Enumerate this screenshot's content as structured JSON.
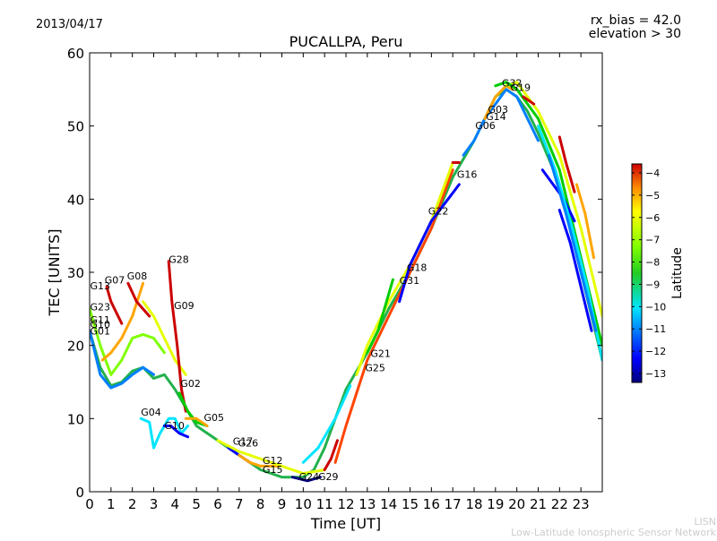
{
  "header": {
    "date": "2013/04/17",
    "title": "PUCALLPA, Peru",
    "rx_bias": "rx_bias = 42.0",
    "elevation": "elevation > 30"
  },
  "footer": {
    "brand": "LISN",
    "network": "Low-Latitude Ionospheric Sensor Network"
  },
  "colorbar": {
    "label": "Latitude",
    "ticks": [
      "-4",
      "-5",
      "-6",
      "-7",
      "-8",
      "-9",
      "-10",
      "-11",
      "-12",
      "-13"
    ],
    "range": [
      -13.4,
      -3.6
    ],
    "colors": [
      "#00007f",
      "#0000ff",
      "#007fff",
      "#00e5ff",
      "#22b14c",
      "#00cc00",
      "#7fff00",
      "#e5ff00",
      "#ffa500",
      "#ff4500",
      "#cc0000"
    ]
  },
  "chart_data": {
    "type": "scatter",
    "title": "PUCALLPA, Peru",
    "xlabel": "Time [UT]",
    "ylabel": "TEC [UNITS]",
    "xlim": [
      0,
      24
    ],
    "ylim": [
      0,
      60
    ],
    "xticks": [
      "0",
      "1",
      "2",
      "3",
      "4",
      "5",
      "6",
      "7",
      "8",
      "9",
      "10",
      "11",
      "12",
      "13",
      "14",
      "15",
      "16",
      "17",
      "18",
      "19",
      "20",
      "21",
      "22",
      "23"
    ],
    "yticks": [
      "0",
      "10",
      "20",
      "30",
      "40",
      "50",
      "60"
    ],
    "grid": false,
    "series": [
      {
        "color": "#22b14c",
        "points": [
          [
            0,
            22
          ],
          [
            0.5,
            17
          ],
          [
            1,
            14.5
          ],
          [
            1.5,
            15
          ],
          [
            2,
            16.5
          ],
          [
            2.5,
            17
          ],
          [
            3,
            15.5
          ],
          [
            3.5,
            16
          ],
          [
            4,
            14
          ],
          [
            5,
            9
          ],
          [
            6,
            7
          ],
          [
            7,
            5
          ],
          [
            8,
            3
          ],
          [
            9,
            2
          ],
          [
            10,
            2
          ],
          [
            10.5,
            3
          ],
          [
            11,
            6
          ],
          [
            11.5,
            10
          ],
          [
            12,
            14
          ],
          [
            13,
            19
          ],
          [
            14,
            25
          ],
          [
            15,
            30
          ],
          [
            16,
            36
          ],
          [
            17,
            43
          ],
          [
            18,
            48
          ],
          [
            19,
            54
          ],
          [
            19.5,
            55
          ],
          [
            20,
            54
          ],
          [
            20.5,
            52
          ],
          [
            21,
            49
          ],
          [
            22,
            42
          ],
          [
            23,
            30
          ],
          [
            24,
            18
          ]
        ]
      },
      {
        "color": "#007fff",
        "points": [
          [
            0,
            22
          ],
          [
            0.5,
            16
          ],
          [
            1,
            14.2
          ],
          [
            1.5,
            14.8
          ],
          [
            2,
            16
          ],
          [
            2.5,
            17
          ],
          [
            3,
            16
          ]
        ]
      },
      {
        "color": "#7fff00",
        "points": [
          [
            0,
            25
          ],
          [
            0.5,
            20
          ],
          [
            1,
            16
          ],
          [
            1.5,
            18
          ],
          [
            2,
            21
          ],
          [
            2.5,
            21.5
          ],
          [
            3,
            21
          ],
          [
            3.5,
            19
          ]
        ]
      },
      {
        "color": "#ffa500",
        "points": [
          [
            0.6,
            18
          ],
          [
            1,
            19
          ],
          [
            1.5,
            21
          ],
          [
            2,
            24
          ],
          [
            2.5,
            28.5
          ]
        ]
      },
      {
        "color": "#cc0000",
        "points": [
          [
            0.8,
            28
          ],
          [
            1,
            26
          ],
          [
            1.5,
            23
          ]
        ]
      },
      {
        "color": "#cc0000",
        "points": [
          [
            1.8,
            28.5
          ],
          [
            2.2,
            26
          ],
          [
            2.8,
            24
          ]
        ]
      },
      {
        "color": "#e5ff00",
        "points": [
          [
            2.5,
            26
          ],
          [
            3,
            24
          ],
          [
            3.5,
            21
          ],
          [
            4,
            18
          ],
          [
            4.5,
            16
          ]
        ]
      },
      {
        "color": "#cc0000",
        "points": [
          [
            3.7,
            31.5
          ],
          [
            3.85,
            26
          ],
          [
            4.1,
            20
          ],
          [
            4.3,
            14
          ],
          [
            4.5,
            11
          ]
        ]
      },
      {
        "color": "#00cc00",
        "points": [
          [
            4.2,
            13.5
          ],
          [
            4.6,
            11
          ],
          [
            5,
            9.5
          ],
          [
            5.5,
            9
          ]
        ]
      },
      {
        "color": "#00e5ff",
        "points": [
          [
            2.4,
            10
          ],
          [
            2.8,
            9.5
          ],
          [
            3,
            6
          ],
          [
            3.3,
            8
          ],
          [
            3.7,
            10
          ],
          [
            4,
            10
          ],
          [
            4.3,
            8
          ],
          [
            4.6,
            9
          ]
        ]
      },
      {
        "color": "#0000ff",
        "points": [
          [
            3.5,
            9
          ],
          [
            3.8,
            9
          ],
          [
            4.2,
            8
          ],
          [
            4.6,
            7.5
          ]
        ]
      },
      {
        "color": "#ffa500",
        "points": [
          [
            4.5,
            10
          ],
          [
            5,
            10
          ],
          [
            5.5,
            9
          ]
        ]
      },
      {
        "color": "#0000ff",
        "points": [
          [
            6.5,
            6
          ],
          [
            7,
            5
          ],
          [
            7.5,
            4
          ]
        ]
      },
      {
        "color": "#ffa500",
        "points": [
          [
            7,
            5
          ],
          [
            7.5,
            4
          ],
          [
            8,
            3.5
          ],
          [
            8.5,
            3.5
          ],
          [
            9,
            3.5
          ]
        ]
      },
      {
        "color": "#e5ff00",
        "points": [
          [
            6,
            7
          ],
          [
            7,
            5.5
          ],
          [
            8,
            4.5
          ],
          [
            9,
            3.5
          ],
          [
            10,
            2.5
          ],
          [
            11,
            3
          ]
        ]
      },
      {
        "color": "#00007f",
        "points": [
          [
            9.5,
            2
          ],
          [
            10.2,
            1.5
          ],
          [
            10.8,
            2
          ]
        ]
      },
      {
        "color": "#cc0000",
        "points": [
          [
            11,
            3
          ],
          [
            11.3,
            4.5
          ],
          [
            11.6,
            7
          ]
        ]
      },
      {
        "color": "#00e5ff",
        "points": [
          [
            10,
            4
          ],
          [
            10.7,
            6
          ],
          [
            11.5,
            10
          ],
          [
            12.2,
            14.5
          ]
        ]
      },
      {
        "color": "#ff4500",
        "points": [
          [
            11.5,
            4
          ],
          [
            12,
            9
          ],
          [
            13,
            18
          ],
          [
            14,
            24
          ],
          [
            15,
            30
          ],
          [
            16,
            36
          ],
          [
            17,
            44
          ]
        ]
      },
      {
        "color": "#e5ff00",
        "points": [
          [
            12.5,
            16
          ],
          [
            13,
            20
          ],
          [
            14,
            26
          ],
          [
            15,
            31
          ],
          [
            16,
            37
          ],
          [
            17,
            45
          ]
        ]
      },
      {
        "color": "#00cc00",
        "points": [
          [
            13,
            19
          ],
          [
            13.5,
            22
          ],
          [
            14.2,
            29
          ]
        ]
      },
      {
        "color": "#0000ff",
        "points": [
          [
            14.5,
            26
          ],
          [
            15,
            31
          ],
          [
            16,
            37
          ],
          [
            17.3,
            42
          ]
        ]
      },
      {
        "color": "#cc0000",
        "points": [
          [
            17,
            45
          ],
          [
            17.3,
            45
          ]
        ]
      },
      {
        "color": "#007fff",
        "points": [
          [
            17.5,
            46
          ],
          [
            18,
            48
          ],
          [
            18.5,
            51
          ],
          [
            19,
            53
          ],
          [
            19.5,
            55
          ],
          [
            20,
            54
          ],
          [
            20.5,
            51
          ],
          [
            21,
            48
          ]
        ]
      },
      {
        "color": "#ffa500",
        "points": [
          [
            18.5,
            51
          ],
          [
            19,
            54
          ],
          [
            19.5,
            55.5
          ],
          [
            19.8,
            55
          ]
        ]
      },
      {
        "color": "#e5ff00",
        "points": [
          [
            19.5,
            55.5
          ],
          [
            20,
            56
          ],
          [
            20.5,
            54
          ],
          [
            21,
            52
          ],
          [
            22,
            46
          ],
          [
            23,
            36
          ],
          [
            24,
            24
          ]
        ]
      },
      {
        "color": "#00cc00",
        "points": [
          [
            19,
            55.5
          ],
          [
            19.5,
            56
          ],
          [
            20,
            55
          ],
          [
            21,
            51
          ],
          [
            22,
            44
          ],
          [
            23,
            32
          ],
          [
            24,
            20
          ]
        ]
      },
      {
        "color": "#cc0000",
        "points": [
          [
            20.3,
            54
          ],
          [
            20.8,
            53
          ]
        ]
      },
      {
        "color": "#cc0000",
        "points": [
          [
            22,
            48.5
          ],
          [
            22.3,
            45
          ],
          [
            22.7,
            41
          ]
        ]
      },
      {
        "color": "#0000ff",
        "points": [
          [
            21.2,
            44
          ],
          [
            21.7,
            42
          ],
          [
            22.2,
            40
          ],
          [
            22.7,
            37
          ]
        ]
      },
      {
        "color": "#0000ff",
        "points": [
          [
            22,
            38.5
          ],
          [
            22.5,
            34
          ],
          [
            23,
            28
          ],
          [
            23.5,
            22
          ]
        ]
      },
      {
        "color": "#ffa500",
        "points": [
          [
            22.8,
            42
          ],
          [
            23.2,
            38
          ],
          [
            23.6,
            32
          ]
        ]
      },
      {
        "color": "#00e5ff",
        "points": [
          [
            21,
            50
          ],
          [
            21.8,
            44
          ],
          [
            22.6,
            36
          ],
          [
            23.3,
            28
          ],
          [
            24,
            18
          ]
        ]
      },
      {
        "color": "#007fff",
        "points": [
          [
            21.5,
            46
          ],
          [
            22.3,
            38
          ],
          [
            23,
            30
          ],
          [
            23.7,
            22
          ]
        ]
      }
    ],
    "annotations": [
      {
        "text": "G13",
        "x": 0.02,
        "y": 27.7
      },
      {
        "text": "G07",
        "x": 0.7,
        "y": 28.5
      },
      {
        "text": "G08",
        "x": 1.75,
        "y": 29
      },
      {
        "text": "G28",
        "x": 3.7,
        "y": 31.3
      },
      {
        "text": "G09",
        "x": 3.95,
        "y": 25
      },
      {
        "text": "G23",
        "x": 0.02,
        "y": 24.8
      },
      {
        "text": "G11",
        "x": 0.02,
        "y": 23
      },
      {
        "text": "G10",
        "x": 0.02,
        "y": 22.4
      },
      {
        "text": "G01",
        "x": 0.02,
        "y": 21.5
      },
      {
        "text": "G02",
        "x": 4.25,
        "y": 14.3
      },
      {
        "text": "G04",
        "x": 2.4,
        "y": 10.4
      },
      {
        "text": "G10",
        "x": 3.5,
        "y": 8.6
      },
      {
        "text": "G05",
        "x": 5.35,
        "y": 9.7
      },
      {
        "text": "G17",
        "x": 6.7,
        "y": 6.4
      },
      {
        "text": "G26",
        "x": 6.95,
        "y": 6.2
      },
      {
        "text": "G12",
        "x": 8.1,
        "y": 3.8
      },
      {
        "text": "G15",
        "x": 8.1,
        "y": 2.6
      },
      {
        "text": "G24",
        "x": 9.8,
        "y": 1.6
      },
      {
        "text": "G29",
        "x": 10.7,
        "y": 1.6
      },
      {
        "text": "G25",
        "x": 12.9,
        "y": 16.5
      },
      {
        "text": "G21",
        "x": 13.15,
        "y": 18.4
      },
      {
        "text": "G31",
        "x": 14.5,
        "y": 28.4
      },
      {
        "text": "G18",
        "x": 14.85,
        "y": 30.2
      },
      {
        "text": "G22",
        "x": 15.85,
        "y": 37.9
      },
      {
        "text": "G16",
        "x": 17.2,
        "y": 42.9
      },
      {
        "text": "G06",
        "x": 18.05,
        "y": 49.6
      },
      {
        "text": "G14",
        "x": 18.55,
        "y": 50.8
      },
      {
        "text": "G03",
        "x": 18.65,
        "y": 51.8
      },
      {
        "text": "G32",
        "x": 19.3,
        "y": 55.4
      },
      {
        "text": "G19",
        "x": 19.7,
        "y": 54.8
      }
    ]
  }
}
